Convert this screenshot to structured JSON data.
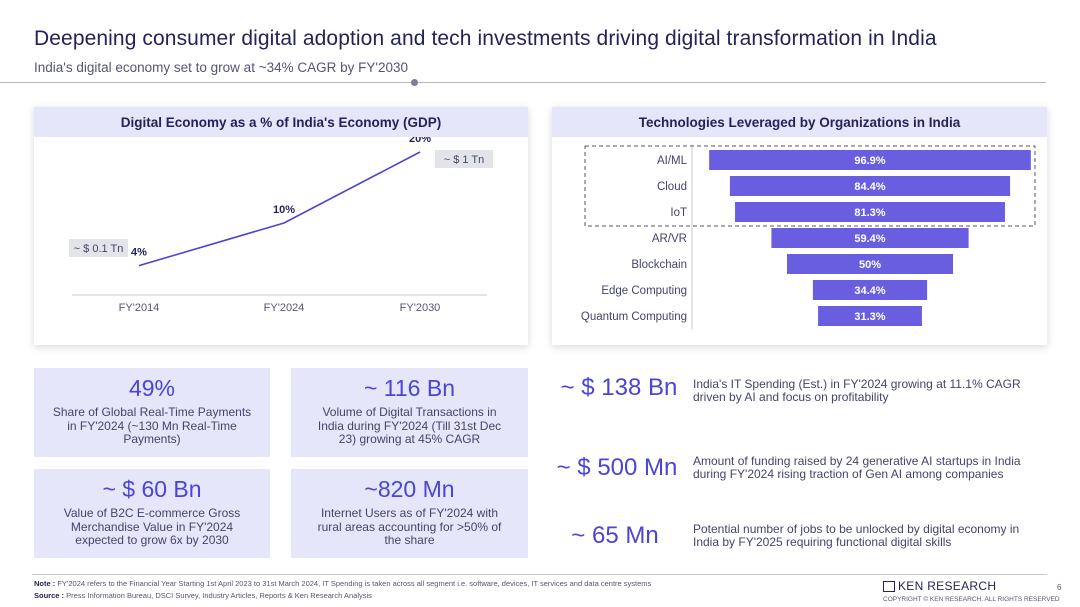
{
  "header": {
    "title": "Deepening consumer digital adoption and tech investments driving digital transformation in India",
    "subtitle": "India's digital economy set to grow at ~34% CAGR by FY'2030"
  },
  "left_panel": {
    "title": "Digital Economy as a % of India's Economy (GDP)"
  },
  "right_panel": {
    "title": "Technologies Leveraged by Organizations in India"
  },
  "chart_data": [
    {
      "type": "line",
      "title": "Digital Economy as a % of India's Economy (GDP)",
      "categories": [
        "FY'2014",
        "FY'2024",
        "FY'2030"
      ],
      "values": [
        4,
        10,
        20
      ],
      "data_labels": [
        "4%",
        "10%",
        "20%"
      ],
      "annotations": [
        "~ $ 0.1 Tn",
        "~ $ 1 Tn"
      ],
      "xlabel": "",
      "ylabel": "",
      "ylim": [
        0,
        22
      ],
      "color": "#4b44d6"
    },
    {
      "type": "bar",
      "orientation": "horizontal-funnel",
      "title": "Technologies Leveraged by Organizations in India",
      "categories": [
        "AI/ML",
        "Cloud",
        "IoT",
        "AR/VR",
        "Blockchain",
        "Edge Computing",
        "Quantum Computing"
      ],
      "values": [
        96.9,
        84.4,
        81.3,
        59.4,
        50,
        34.4,
        31.3
      ],
      "data_labels": [
        "96.9%",
        "84.4%",
        "81.3%",
        "59.4%",
        "50%",
        "34.4%",
        "31.3%"
      ],
      "highlighted": [
        "AI/ML",
        "Cloud",
        "IoT"
      ],
      "xlim": [
        0,
        100
      ],
      "color": "#6a5ee0"
    }
  ],
  "cards": [
    {
      "value": "49%",
      "desc": "Share of Global Real-Time Payments in FY'2024 (~130 Mn Real-Time Payments)"
    },
    {
      "value": "~ 116 Bn",
      "desc": "Volume of Digital Transactions in India during FY'2024 (Till 31st Dec 23) growing at 45% CAGR"
    },
    {
      "value": "~ $ 60 Bn",
      "desc": "Value of B2C E-commerce Gross Merchandise Value in FY'2024 expected to grow 6x by 2030"
    },
    {
      "value": "~820 Mn",
      "desc": "Internet Users as of FY'2024 with rural areas accounting for >50% of the share"
    }
  ],
  "stats": [
    {
      "value": "~ $ 138 Bn",
      "desc": "India's IT Spending (Est.) in FY'2024 growing at 11.1% CAGR  driven by AI and focus on profitability"
    },
    {
      "value": "~ $ 500 Mn",
      "desc": "Amount of funding raised by 24 generative AI startups in India during FY'2024 rising traction of Gen AI among companies"
    },
    {
      "value": "~ 65 Mn",
      "desc": "Potential number of jobs to be unlocked by digital economy in India by FY'2025 requiring functional digital skills"
    }
  ],
  "footer": {
    "note_label": "Note :",
    "note": "FY'2024 refers to the Financial Year Starting 1st April 2023 to 31st March 2024, IT Spending is taken across all segment i.e. software, devices, IT services and data centre systems",
    "source_label": "Source :",
    "source": "Press Information Bureau, DSCI Survey, Industry Articles, Reports & Ken Research Analysis",
    "brand": "KEN RESEARCH",
    "copyright": "COPYRIGHT © KEN RESEARCH. ALL RIGHTS RESERVED",
    "page": "6"
  }
}
